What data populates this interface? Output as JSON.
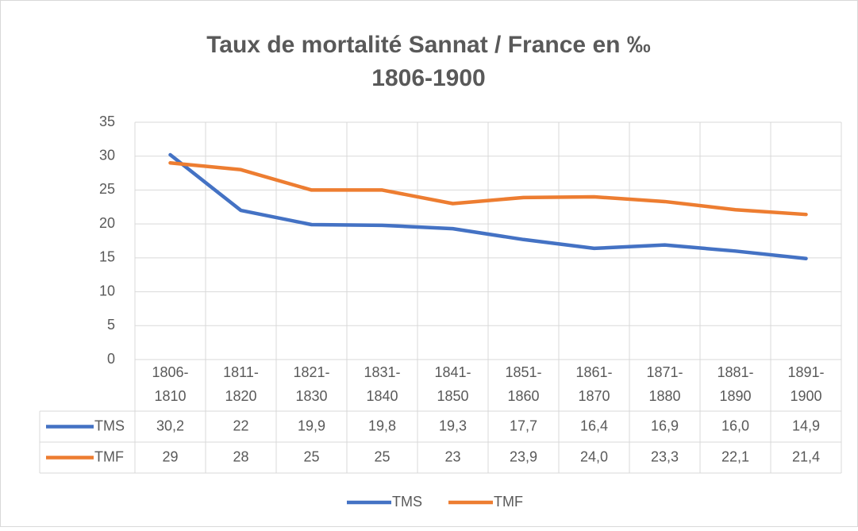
{
  "chart_data": {
    "type": "line",
    "title": "Taux de mortalité Sannat / France en ‰",
    "subtitle": "1806-1900",
    "categories": [
      "1806-1810",
      "1811-1820",
      "1821-1830",
      "1831-1840",
      "1841-1850",
      "1851-1860",
      "1861-1870",
      "1871-1880",
      "1881-1890",
      "1891-1900"
    ],
    "series": [
      {
        "name": "TMS",
        "color": "#4472c4",
        "values": [
          30.2,
          22,
          19.9,
          19.8,
          19.3,
          17.7,
          16.4,
          16.9,
          16.0,
          14.9
        ],
        "value_labels": [
          "30,2",
          "22",
          "19,9",
          "19,8",
          "19,3",
          "17,7",
          "16,4",
          "16,9",
          "16,0",
          "14,9"
        ]
      },
      {
        "name": "TMF",
        "color": "#ed7d31",
        "values": [
          29,
          28,
          25,
          25,
          23,
          23.9,
          24.0,
          23.3,
          22.1,
          21.4
        ],
        "value_labels": [
          "29",
          "28",
          "25",
          "25",
          "23",
          "23,9",
          "24,0",
          "23,3",
          "22,1",
          "21,4"
        ]
      }
    ],
    "ylim": [
      0,
      35
    ],
    "yticks": [
      0,
      5,
      10,
      15,
      20,
      25,
      30,
      35
    ],
    "grid": true,
    "legend": "bottom",
    "data_table": true
  }
}
